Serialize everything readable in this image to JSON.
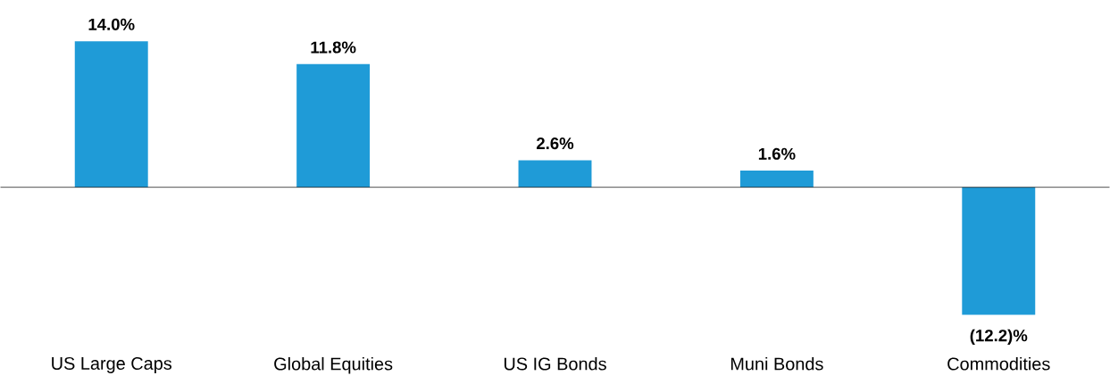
{
  "chart_data": {
    "type": "bar",
    "categories": [
      "US Large Caps",
      "Global Equities",
      "US IG Bonds",
      "Muni Bonds",
      "Commodities"
    ],
    "values": [
      14.0,
      11.8,
      2.6,
      1.6,
      -12.2
    ],
    "color": "#1f9bd7",
    "value_labels": [
      "14.0%",
      "11.8%",
      "2.6%",
      "1.6%",
      "(12.2)%"
    ]
  }
}
